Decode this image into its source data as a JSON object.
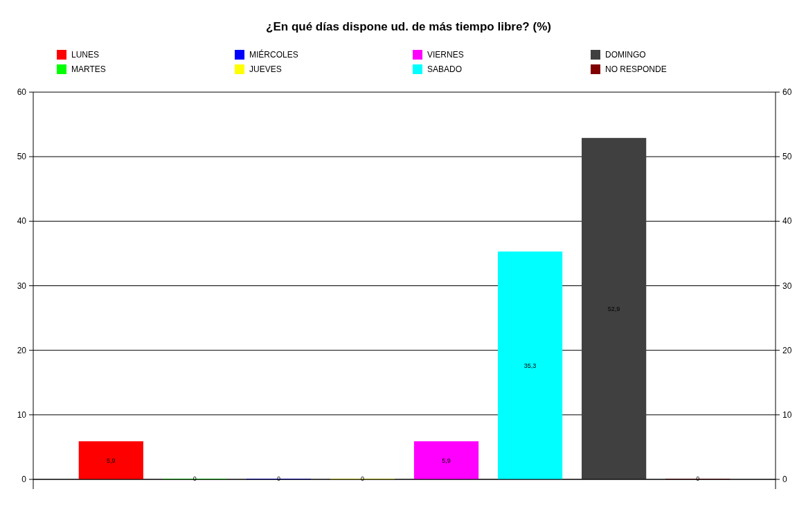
{
  "chart_data": {
    "type": "bar",
    "title": "¿En qué días dispone ud. de más tiempo libre? (%)",
    "categories": [
      null
    ],
    "series": [
      {
        "name": "LUNES",
        "color": "#ff0000",
        "values": [
          5.9
        ],
        "value_labels": [
          "5,9"
        ]
      },
      {
        "name": "MARTES",
        "color": "#00ff00",
        "values": [
          0
        ],
        "value_labels": [
          "0"
        ]
      },
      {
        "name": "MIÉRCOLES",
        "color": "#0000ff",
        "values": [
          0
        ],
        "value_labels": [
          "0"
        ]
      },
      {
        "name": "JUEVES",
        "color": "#ffff00",
        "values": [
          0
        ],
        "value_labels": [
          "0"
        ]
      },
      {
        "name": "VIERNES",
        "color": "#ff00ff",
        "values": [
          5.9
        ],
        "value_labels": [
          "5,9"
        ]
      },
      {
        "name": "SABADO",
        "color": "#00ffff",
        "values": [
          35.3
        ],
        "value_labels": [
          "35,3"
        ]
      },
      {
        "name": "DOMINGO",
        "color": "#404040",
        "values": [
          52.9
        ],
        "value_labels": [
          "52,9"
        ]
      },
      {
        "name": "NO RESPONDE",
        "color": "#800000",
        "values": [
          0
        ],
        "value_labels": [
          "0"
        ]
      }
    ],
    "ylim": [
      0,
      60
    ],
    "yticks": [
      0,
      10,
      20,
      30,
      40,
      50,
      60
    ],
    "y2lim": [
      0,
      60
    ],
    "y2ticks": [
      0,
      10,
      20,
      30,
      40,
      50,
      60
    ],
    "grid": "y",
    "legend": "top"
  }
}
